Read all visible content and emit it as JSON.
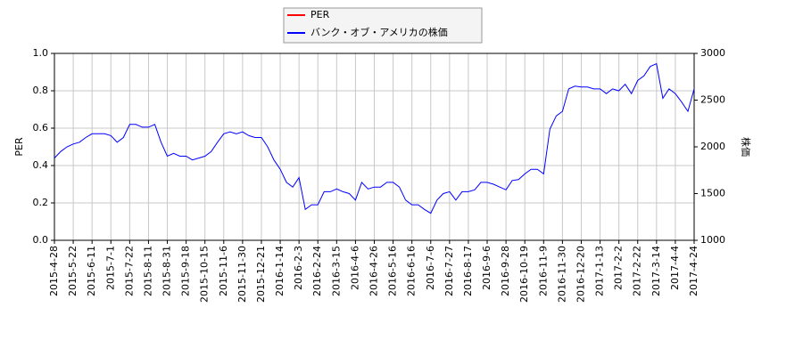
{
  "chart_data": {
    "type": "line",
    "y_label": "PER",
    "y2_label": "株価",
    "categories": [
      "2015-4-28",
      null,
      null,
      "2015-5-22",
      null,
      null,
      "2015-6-11",
      null,
      null,
      "2015-7-1",
      null,
      null,
      "2015-7-22",
      null,
      null,
      "2015-8-11",
      null,
      null,
      "2015-8-31",
      null,
      null,
      "2015-9-18",
      null,
      null,
      "2015-10-15",
      null,
      null,
      "2015-11-6",
      null,
      null,
      "2015-11-30",
      null,
      null,
      "2015-12-21",
      null,
      null,
      "2016-1-14",
      null,
      null,
      "2016-2-3",
      null,
      null,
      "2016-2-24",
      null,
      null,
      "2016-3-15",
      null,
      null,
      "2016-4-6",
      null,
      null,
      "2016-4-26",
      null,
      null,
      "2016-5-16",
      null,
      null,
      "2016-6-16",
      null,
      null,
      "2016-7-6",
      null,
      null,
      "2016-7-27",
      null,
      null,
      "2016-8-17",
      null,
      null,
      "2016-9-6",
      null,
      null,
      "2016-9-28",
      null,
      null,
      "2016-10-19",
      null,
      null,
      "2016-11-9",
      null,
      null,
      "2016-11-30",
      null,
      null,
      "2016-12-20",
      null,
      null,
      "2017-1-13",
      null,
      null,
      "2017-2-2",
      null,
      null,
      "2017-2-22",
      null,
      null,
      "2017-3-14",
      null,
      null,
      "2017-4-4",
      null,
      null,
      "2017-4-24"
    ],
    "series": [
      {
        "name": "PER",
        "color": "#ff0000",
        "axis": "y",
        "values": [
          null,
          null,
          null,
          null,
          null,
          null,
          null,
          null,
          null,
          null,
          null,
          null,
          null,
          null,
          null,
          null,
          null,
          null,
          null,
          null,
          null,
          null,
          null,
          null,
          null,
          null,
          null,
          null,
          null,
          null,
          null,
          null,
          null,
          null,
          null,
          null,
          null,
          null,
          null,
          null,
          null,
          null,
          null,
          null,
          null,
          null,
          null,
          null,
          null,
          null,
          null,
          null,
          null,
          null,
          null,
          null,
          null,
          null,
          null,
          null,
          null,
          null,
          null,
          null,
          null,
          null,
          null,
          null,
          null,
          null,
          null,
          null,
          null,
          null,
          null,
          null,
          null,
          null,
          null,
          null,
          null,
          null,
          null,
          null,
          null,
          null,
          null,
          null,
          null,
          null,
          null,
          null,
          null,
          null,
          null,
          null,
          null,
          null,
          null,
          null,
          null,
          null,
          null
        ]
      },
      {
        "name": "バンク・オブ・アメリカの株価",
        "color": "#0000ff",
        "axis": "y2",
        "values": [
          1880,
          1950,
          2000,
          2030,
          2050,
          2100,
          2140,
          2140,
          2140,
          2120,
          2050,
          2100,
          2240,
          2240,
          2210,
          2210,
          2240,
          2050,
          1900,
          1930,
          1900,
          1900,
          1860,
          1880,
          1900,
          1950,
          2050,
          2140,
          2160,
          2140,
          2160,
          2120,
          2100,
          2100,
          2000,
          1860,
          1760,
          1620,
          1570,
          1670,
          1330,
          1380,
          1380,
          1520,
          1520,
          1550,
          1520,
          1500,
          1430,
          1620,
          1550,
          1570,
          1570,
          1620,
          1620,
          1570,
          1430,
          1380,
          1380,
          1330,
          1290,
          1430,
          1500,
          1520,
          1430,
          1520,
          1520,
          1540,
          1620,
          1620,
          1600,
          1570,
          1540,
          1640,
          1650,
          1710,
          1760,
          1760,
          1710,
          2190,
          2330,
          2380,
          2620,
          2650,
          2640,
          2640,
          2620,
          2620,
          2570,
          2620,
          2600,
          2670,
          2570,
          2710,
          2760,
          2860,
          2890,
          2520,
          2620,
          2570,
          2480,
          2380,
          2620
        ]
      }
    ],
    "ylim": [
      0,
      1
    ],
    "yticks": [
      {
        "value": 0,
        "label": "0.0"
      },
      0.2,
      0.4,
      0.6,
      0.8,
      {
        "value": 1,
        "label": "1.0"
      }
    ],
    "y2lim": [
      1000,
      3000
    ],
    "y2ticks": [
      1000,
      1500,
      2000,
      2500,
      3000
    ],
    "grid": true,
    "legend": "top"
  }
}
